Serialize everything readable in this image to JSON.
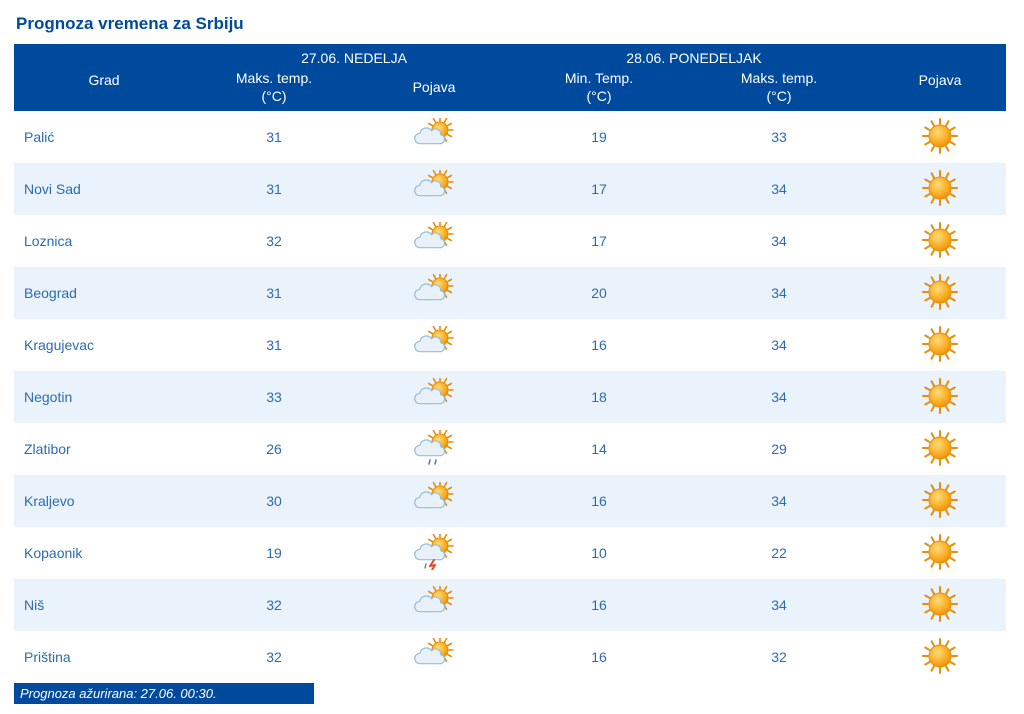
{
  "title": "Prognoza vremena za Srbiju",
  "header": {
    "city_label": "Grad",
    "day1_label": "27.06. NEDELJA",
    "day2_label": "28.06. PONEDELJAK",
    "max_temp_label": "Maks. temp.\n(°C)",
    "day2_max_temp_label": "Maks. temp.\n(°C)",
    "min_temp_label": "Min. Temp.\n(°C)",
    "phenomenon_label": "Pojava"
  },
  "columns_width": {
    "city": 180,
    "max1": 160,
    "icon1": 160,
    "min2": 170,
    "max2": 190,
    "icon2": 132
  },
  "colors": {
    "brand_blue": "#004a9e",
    "text_blue": "#2b6bb3",
    "row_even": "#eaf3fb",
    "row_odd": "#ffffff",
    "sun_fill": "#f7a81b",
    "sun_stroke": "#e58e0a",
    "cloud_fill": "#e8f1f8",
    "cloud_stroke": "#9abbd6",
    "rain": "#5a7fa6",
    "thunder": "#e34a2b"
  },
  "rows": [
    {
      "city": "Palić",
      "max1": 31,
      "icon1": "sun_cloud",
      "min2": 19,
      "max2": 33,
      "icon2": "sun"
    },
    {
      "city": "Novi Sad",
      "max1": 31,
      "icon1": "sun_cloud",
      "min2": 17,
      "max2": 34,
      "icon2": "sun"
    },
    {
      "city": "Loznica",
      "max1": 32,
      "icon1": "sun_cloud",
      "min2": 17,
      "max2": 34,
      "icon2": "sun"
    },
    {
      "city": "Beograd",
      "max1": 31,
      "icon1": "sun_cloud",
      "min2": 20,
      "max2": 34,
      "icon2": "sun"
    },
    {
      "city": "Kragujevac",
      "max1": 31,
      "icon1": "sun_cloud",
      "min2": 16,
      "max2": 34,
      "icon2": "sun"
    },
    {
      "city": "Negotin",
      "max1": 33,
      "icon1": "sun_cloud",
      "min2": 18,
      "max2": 34,
      "icon2": "sun"
    },
    {
      "city": "Zlatibor",
      "max1": 26,
      "icon1": "sun_cloud_rain",
      "min2": 14,
      "max2": 29,
      "icon2": "sun"
    },
    {
      "city": "Kraljevo",
      "max1": 30,
      "icon1": "sun_cloud",
      "min2": 16,
      "max2": 34,
      "icon2": "sun"
    },
    {
      "city": "Kopaonik",
      "max1": 19,
      "icon1": "sun_cloud_thunder",
      "min2": 10,
      "max2": 22,
      "icon2": "sun"
    },
    {
      "city": "Niš",
      "max1": 32,
      "icon1": "sun_cloud",
      "min2": 16,
      "max2": 34,
      "icon2": "sun"
    },
    {
      "city": "Priština",
      "max1": 32,
      "icon1": "sun_cloud",
      "min2": 16,
      "max2": 32,
      "icon2": "sun"
    }
  ],
  "status": "Prognoza ažurirana:  27.06. 00:30."
}
